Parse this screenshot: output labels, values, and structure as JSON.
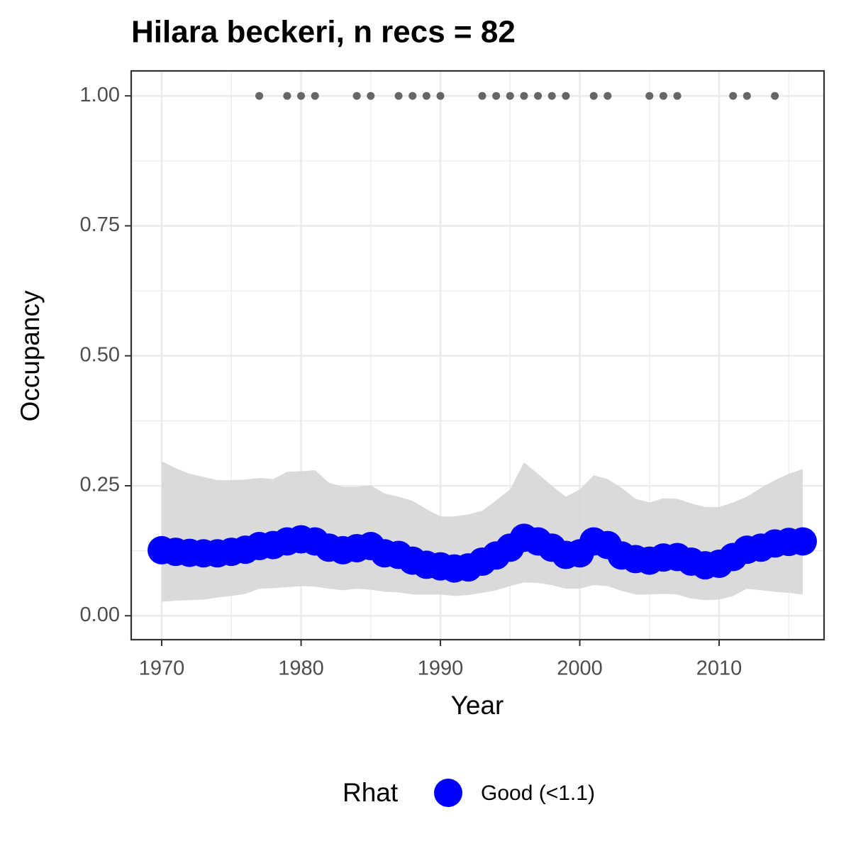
{
  "chart_data": {
    "type": "scatter",
    "title": "Hilara beckeri, n recs = 82",
    "xlabel": "Year",
    "ylabel": "Occupancy",
    "legend_title": "Rhat",
    "legend_position": "bottom",
    "x": [
      1970,
      1971,
      1972,
      1973,
      1974,
      1975,
      1976,
      1977,
      1978,
      1979,
      1980,
      1981,
      1982,
      1983,
      1984,
      1985,
      1986,
      1987,
      1988,
      1989,
      1990,
      1991,
      1992,
      1993,
      1994,
      1995,
      1996,
      1997,
      1998,
      1999,
      2000,
      2001,
      2002,
      2003,
      2004,
      2005,
      2006,
      2007,
      2008,
      2009,
      2010,
      2011,
      2012,
      2013,
      2014,
      2015,
      2016
    ],
    "series": [
      {
        "name": "Good (<1.1)",
        "color": "#0000ff",
        "values": [
          0.126,
          0.123,
          0.121,
          0.12,
          0.12,
          0.123,
          0.127,
          0.134,
          0.136,
          0.143,
          0.147,
          0.143,
          0.131,
          0.126,
          0.13,
          0.134,
          0.12,
          0.117,
          0.106,
          0.098,
          0.095,
          0.091,
          0.093,
          0.104,
          0.116,
          0.131,
          0.15,
          0.143,
          0.131,
          0.117,
          0.12,
          0.143,
          0.136,
          0.116,
          0.109,
          0.106,
          0.112,
          0.113,
          0.104,
          0.097,
          0.1,
          0.113,
          0.127,
          0.131,
          0.139,
          0.142,
          0.143
        ]
      }
    ],
    "band": {
      "color": "#d6d6d6",
      "lower": [
        0.027,
        0.029,
        0.03,
        0.031,
        0.035,
        0.038,
        0.042,
        0.052,
        0.053,
        0.055,
        0.057,
        0.056,
        0.052,
        0.049,
        0.052,
        0.05,
        0.046,
        0.045,
        0.041,
        0.041,
        0.041,
        0.038,
        0.04,
        0.044,
        0.049,
        0.057,
        0.064,
        0.063,
        0.059,
        0.052,
        0.052,
        0.059,
        0.057,
        0.048,
        0.041,
        0.041,
        0.042,
        0.041,
        0.033,
        0.03,
        0.031,
        0.038,
        0.052,
        0.049,
        0.046,
        0.044,
        0.041
      ],
      "upper": [
        0.297,
        0.284,
        0.273,
        0.267,
        0.261,
        0.261,
        0.262,
        0.265,
        0.263,
        0.277,
        0.278,
        0.28,
        0.256,
        0.248,
        0.248,
        0.251,
        0.235,
        0.229,
        0.221,
        0.205,
        0.191,
        0.191,
        0.195,
        0.202,
        0.222,
        0.243,
        0.295,
        0.273,
        0.25,
        0.229,
        0.243,
        0.27,
        0.263,
        0.246,
        0.225,
        0.218,
        0.226,
        0.225,
        0.216,
        0.209,
        0.209,
        0.218,
        0.229,
        0.246,
        0.261,
        0.273,
        0.282
      ]
    },
    "records": {
      "color": "#666666",
      "x": [
        1977,
        1979,
        1980,
        1981,
        1984,
        1985,
        1987,
        1988,
        1989,
        1990,
        1993,
        1994,
        1995,
        1996,
        1997,
        1998,
        1999,
        2001,
        2002,
        2005,
        2006,
        2007,
        2011,
        2012,
        2014
      ],
      "values": [
        1,
        1,
        1,
        1,
        1,
        1,
        1,
        1,
        1,
        1,
        1,
        1,
        1,
        1,
        1,
        1,
        1,
        1,
        1,
        1,
        1,
        1,
        1,
        1,
        1
      ]
    },
    "xlim": [
      1967.81,
      2017.53
    ],
    "ylim": [
      -0.046,
      1.048
    ],
    "xticks": [
      1970,
      1980,
      1990,
      2000,
      2010
    ],
    "yticks": [
      {
        "value": 0,
        "label": "0.00"
      },
      {
        "value": 0.25,
        "label": "0.25"
      },
      {
        "value": 0.5,
        "label": "0.50"
      },
      {
        "value": 0.75,
        "label": "0.75"
      },
      {
        "value": 1,
        "label": "1.00"
      }
    ],
    "x_minor_grid": [
      1975,
      1985,
      1995,
      2005,
      2015
    ],
    "y_minor_grid": [
      0.125,
      0.375,
      0.625,
      0.875
    ],
    "grid": true
  }
}
